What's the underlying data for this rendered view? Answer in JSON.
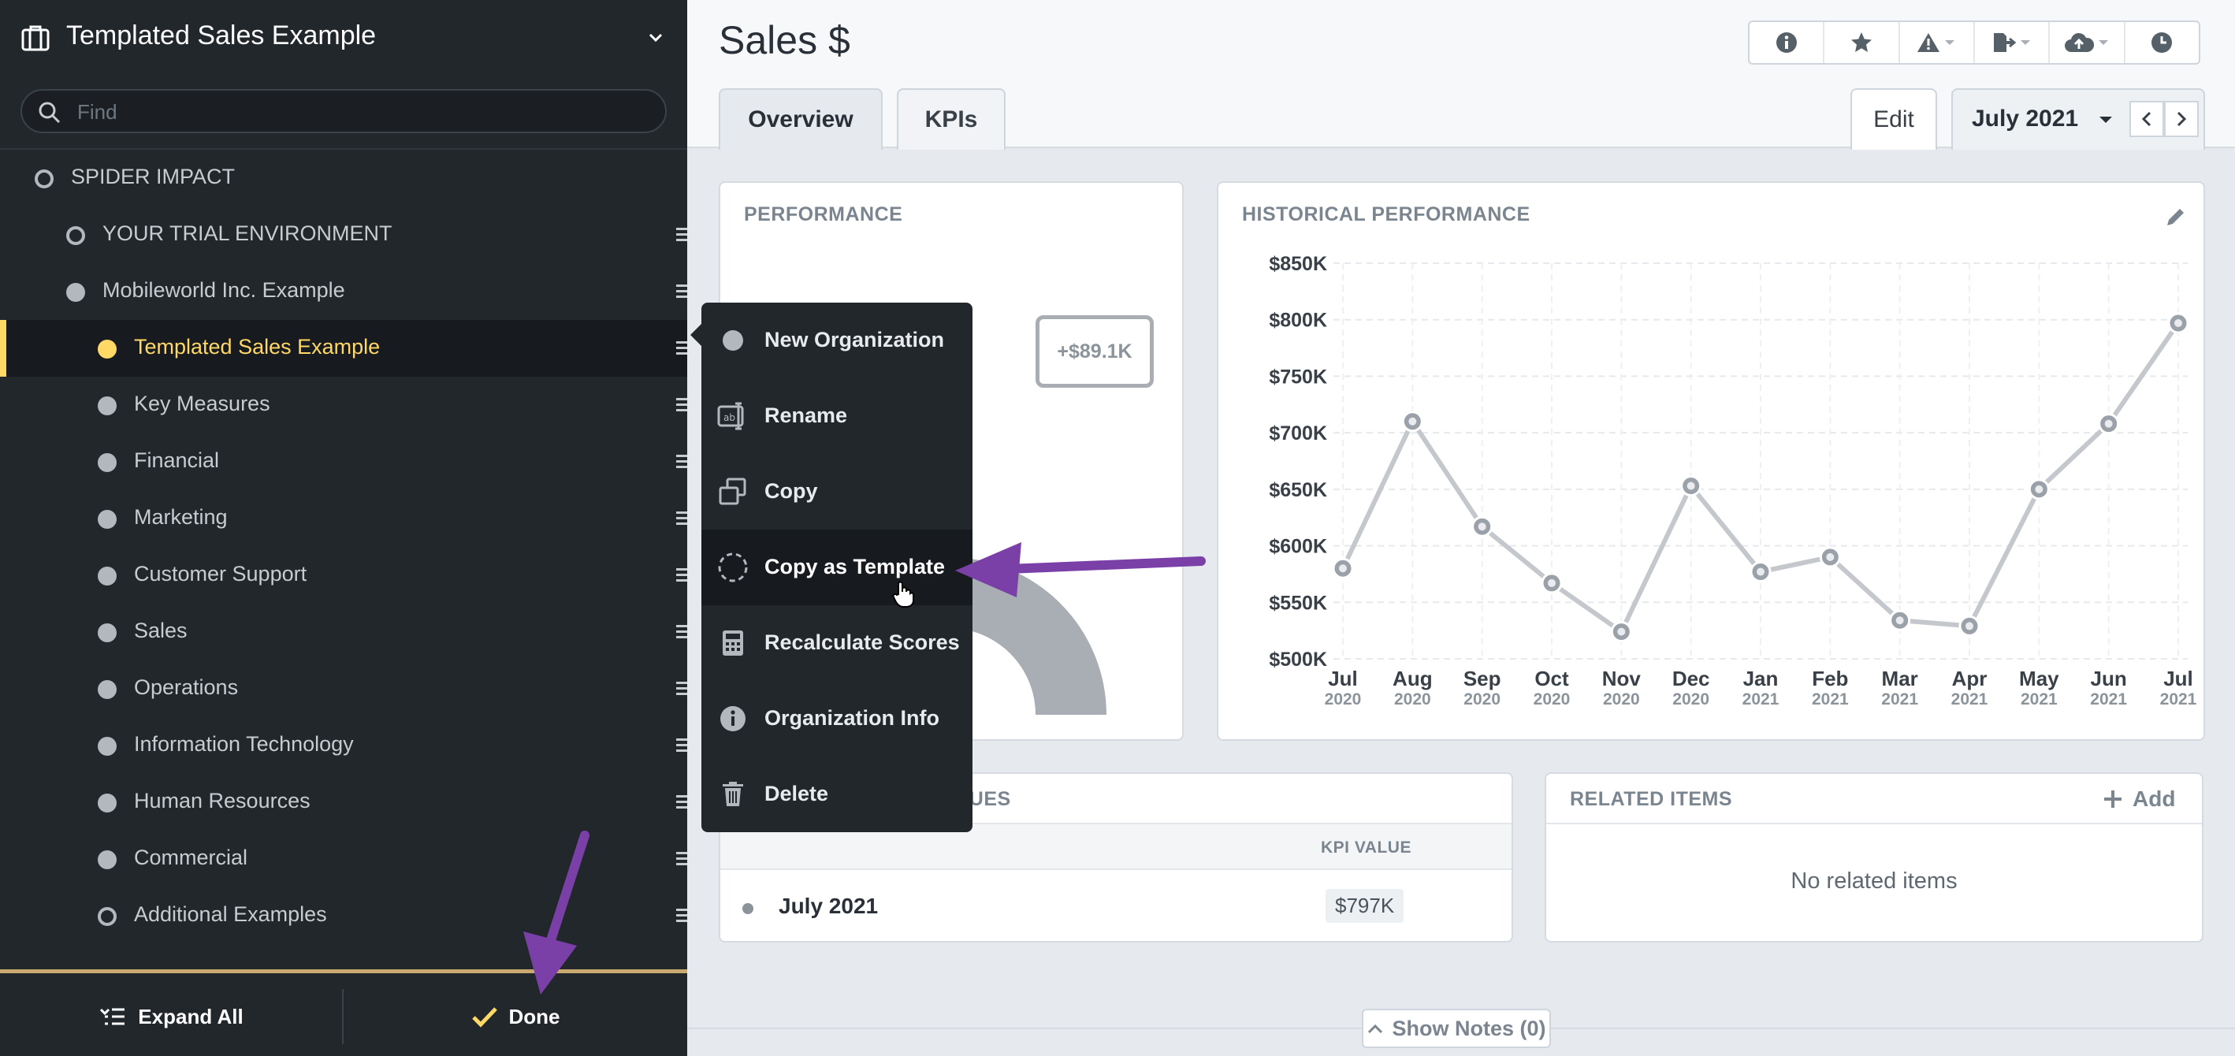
{
  "sidebar": {
    "title": "Templated Sales Example",
    "search_placeholder": "Find",
    "items": [
      {
        "label": "SPIDER IMPACT",
        "bullet": "hollow"
      },
      {
        "label": "YOUR TRIAL ENVIRONMENT",
        "bullet": "hollow"
      },
      {
        "label": "Mobileworld Inc. Example",
        "bullet": "filled"
      },
      {
        "label": "Templated Sales Example",
        "bullet": "yellow",
        "active": true
      },
      {
        "label": "Key Measures",
        "bullet": "filled"
      },
      {
        "label": "Financial",
        "bullet": "filled"
      },
      {
        "label": "Marketing",
        "bullet": "filled"
      },
      {
        "label": "Customer Support",
        "bullet": "filled"
      },
      {
        "label": "Sales",
        "bullet": "filled"
      },
      {
        "label": "Operations",
        "bullet": "filled"
      },
      {
        "label": "Information Technology",
        "bullet": "filled"
      },
      {
        "label": "Human Resources",
        "bullet": "filled"
      },
      {
        "label": "Commercial",
        "bullet": "filled"
      },
      {
        "label": "Additional Examples",
        "bullet": "hollow"
      }
    ],
    "expand_all_label": "Expand All",
    "done_label": "Done"
  },
  "header": {
    "title": "Sales $",
    "tabs": [
      {
        "label": "Overview"
      },
      {
        "label": "KPIs"
      }
    ],
    "edit_label": "Edit",
    "period_label": "July 2021",
    "toolbar_icons": [
      "info-icon",
      "star-icon",
      "warning-icon",
      "export-icon",
      "cloud-upload-icon",
      "history-icon"
    ]
  },
  "performance": {
    "title": "PERFORMANCE",
    "change_label": "+$89.1K",
    "gauge_color": "#a8aeb4"
  },
  "historical": {
    "title": "HISTORICAL PERFORMANCE"
  },
  "kpi_values": {
    "title_visible": "LUES",
    "column_header": "KPI VALUE",
    "rows": [
      {
        "period": "July 2021",
        "value": "$797K"
      }
    ]
  },
  "related": {
    "title": "RELATED ITEMS",
    "add_label": "Add",
    "empty_text": "No related items"
  },
  "notes_label": "Show Notes (0)",
  "context_menu": {
    "items": [
      {
        "label": "New Organization",
        "icon": "dot-icon"
      },
      {
        "label": "Rename",
        "icon": "rename-icon"
      },
      {
        "label": "Copy",
        "icon": "copy-icon"
      },
      {
        "label": "Copy as Template",
        "icon": "dashed-circle-icon",
        "hovered": true
      },
      {
        "label": "Recalculate Scores",
        "icon": "calculator-icon"
      },
      {
        "label": "Organization Info",
        "icon": "info-icon"
      },
      {
        "label": "Delete",
        "icon": "trash-icon"
      }
    ]
  },
  "annotation_color": "#7b3fa8",
  "chart_data": {
    "type": "line",
    "title": "HISTORICAL PERFORMANCE",
    "categories": [
      "Jul 2020",
      "Aug 2020",
      "Sep 2020",
      "Oct 2020",
      "Nov 2020",
      "Dec 2020",
      "Jan 2021",
      "Feb 2021",
      "Mar 2021",
      "Apr 2021",
      "May 2021",
      "Jun 2021",
      "Jul 2021"
    ],
    "x_months": [
      "Jul",
      "Aug",
      "Sep",
      "Oct",
      "Nov",
      "Dec",
      "Jan",
      "Feb",
      "Mar",
      "Apr",
      "May",
      "Jun",
      "Jul"
    ],
    "x_years": [
      "2020",
      "2020",
      "2020",
      "2020",
      "2020",
      "2020",
      "2021",
      "2021",
      "2021",
      "2021",
      "2021",
      "2021",
      "2021"
    ],
    "values": [
      580000,
      710000,
      617000,
      567000,
      524000,
      653000,
      577000,
      590000,
      534000,
      529000,
      650000,
      708000,
      797000
    ],
    "ylim": [
      500000,
      850000
    ],
    "yticks": [
      500000,
      550000,
      600000,
      650000,
      700000,
      750000,
      800000,
      850000
    ],
    "ytick_labels": [
      "$500K",
      "$550K",
      "$600K",
      "$650K",
      "$700K",
      "$750K",
      "$800K",
      "$850K"
    ],
    "grid": true,
    "line_color": "#c4c8cc",
    "marker_color": "#9aa1a8"
  }
}
